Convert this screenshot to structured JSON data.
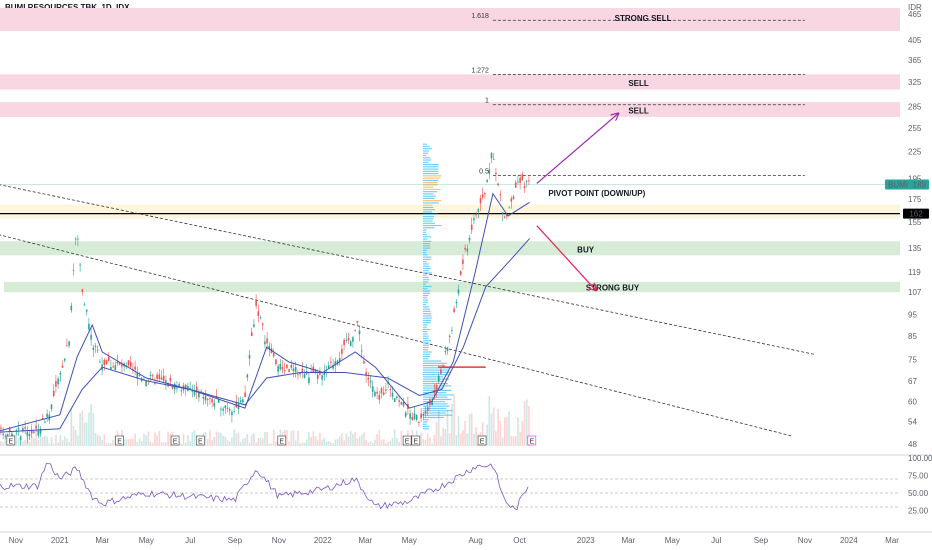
{
  "header": {
    "title": "BUMI RESOURCES TBK, 1D, IDX"
  },
  "price_axis": {
    "currency": "IDR",
    "ticks": [
      "465",
      "405",
      "365",
      "325",
      "285",
      "255",
      "225",
      "195",
      "175",
      "155",
      "135",
      "119",
      "107",
      "95",
      "85",
      "75",
      "67",
      "60",
      "54",
      "48"
    ]
  },
  "rsi_axis": {
    "ticks": [
      "100.00",
      "75.00",
      "50.00",
      "25.00"
    ]
  },
  "time_axis": {
    "labels": [
      "Nov",
      "2021",
      "Mar",
      "May",
      "Jul",
      "Sep",
      "Nov",
      "2022",
      "Mar",
      "May",
      "Aug",
      "Oct",
      "2023",
      "Mar",
      "May",
      "Jul",
      "Sep",
      "Nov",
      "2024",
      "Mar"
    ]
  },
  "badges": {
    "last_price_name": "BUMI",
    "last_price": "189",
    "pivot_price": "162"
  },
  "zones": {
    "strong_sell": "STRONG SELL",
    "sell_1": "SELL",
    "sell_2": "SELL",
    "pivot": "PIVOT POINT (DOWN/UP)",
    "buy": "BUY",
    "strong_buy": "STRONG BUY"
  },
  "fib_levels": [
    "1.618",
    "1.272",
    "1",
    "0.5"
  ],
  "earnings_marker": "E",
  "colors": {
    "sell_zone": "#f8d7e2",
    "buy_zone": "#d7ecd7",
    "pivot_zone": "#fdf6dc",
    "up_candle": "#26a69a",
    "down_candle": "#ef5350",
    "ma": "#3f51b5",
    "rsi": "#7e57c2",
    "arrow_up": "#9c27b0",
    "arrow_down": "#e91e63",
    "volume_profile": "#4fc3f7",
    "last_price_badge": "#26a69a"
  },
  "chart_data": {
    "type": "candlestick",
    "title": "BUMI RESOURCES TBK, 1D, IDX",
    "x_range": [
      "2020-10",
      "2024-03"
    ],
    "price_axis_scale": "log",
    "price_range": [
      46,
      480
    ],
    "price_path": [
      [
        "2020-10-01",
        51
      ],
      [
        "2020-11-01",
        51
      ],
      [
        "2020-12-01",
        51
      ],
      [
        "2020-12-20",
        58
      ],
      [
        "2021-01-01",
        68
      ],
      [
        "2021-01-15",
        85
      ],
      [
        "2021-01-25",
        150
      ],
      [
        "2021-02-01",
        110
      ],
      [
        "2021-02-15",
        82
      ],
      [
        "2021-03-01",
        74
      ],
      [
        "2021-04-01",
        72
      ],
      [
        "2021-05-01",
        68
      ],
      [
        "2021-06-01",
        66
      ],
      [
        "2021-07-01",
        64
      ],
      [
        "2021-08-01",
        60
      ],
      [
        "2021-09-01",
        58
      ],
      [
        "2021-09-15",
        60
      ],
      [
        "2021-10-01",
        100
      ],
      [
        "2021-10-15",
        82
      ],
      [
        "2021-11-01",
        72
      ],
      [
        "2021-12-01",
        70
      ],
      [
        "2022-01-01",
        68
      ],
      [
        "2022-02-01",
        80
      ],
      [
        "2022-02-20",
        90
      ],
      [
        "2022-03-01",
        70
      ],
      [
        "2022-03-20",
        60
      ],
      [
        "2022-04-01",
        66
      ],
      [
        "2022-05-01",
        56
      ],
      [
        "2022-05-15",
        55
      ],
      [
        "2022-06-01",
        60
      ],
      [
        "2022-06-15",
        70
      ],
      [
        "2022-07-01",
        90
      ],
      [
        "2022-07-15",
        125
      ],
      [
        "2022-08-01",
        160
      ],
      [
        "2022-08-15",
        180
      ],
      [
        "2022-08-25",
        230
      ],
      [
        "2022-09-01",
        190
      ],
      [
        "2022-09-10",
        155
      ],
      [
        "2022-09-20",
        175
      ],
      [
        "2022-10-01",
        190
      ],
      [
        "2022-10-15",
        189
      ]
    ],
    "moving_average_fast": [
      [
        "2020-10-01",
        51
      ],
      [
        "2021-01-01",
        56
      ],
      [
        "2021-01-25",
        76
      ],
      [
        "2021-02-15",
        90
      ],
      [
        "2021-03-01",
        78
      ],
      [
        "2021-05-01",
        68
      ],
      [
        "2021-07-01",
        64
      ],
      [
        "2021-09-15",
        58
      ],
      [
        "2021-10-15",
        80
      ],
      [
        "2021-11-15",
        74
      ],
      [
        "2022-01-01",
        70
      ],
      [
        "2022-02-15",
        78
      ],
      [
        "2022-03-15",
        72
      ],
      [
        "2022-05-01",
        58
      ],
      [
        "2022-06-01",
        60
      ],
      [
        "2022-07-01",
        74
      ],
      [
        "2022-08-01",
        120
      ],
      [
        "2022-08-25",
        180
      ],
      [
        "2022-09-15",
        160
      ],
      [
        "2022-10-15",
        172
      ]
    ],
    "moving_average_slow": [
      [
        "2020-10-01",
        51
      ],
      [
        "2021-01-01",
        52
      ],
      [
        "2021-02-01",
        64
      ],
      [
        "2021-03-01",
        72
      ],
      [
        "2021-05-01",
        67
      ],
      [
        "2021-07-01",
        64
      ],
      [
        "2021-09-15",
        59
      ],
      [
        "2021-10-15",
        68
      ],
      [
        "2021-12-01",
        70
      ],
      [
        "2022-02-01",
        70
      ],
      [
        "2022-04-01",
        68
      ],
      [
        "2022-05-15",
        62
      ],
      [
        "2022-06-15",
        64
      ],
      [
        "2022-07-15",
        80
      ],
      [
        "2022-08-15",
        110
      ],
      [
        "2022-09-15",
        125
      ],
      [
        "2022-10-15",
        142
      ]
    ],
    "rsi": {
      "range": [
        0,
        100
      ],
      "levels": [
        70,
        50,
        30
      ],
      "path": [
        [
          "2020-10-01",
          60
        ],
        [
          "2020-12-01",
          60
        ],
        [
          "2020-12-15",
          95
        ],
        [
          "2021-01-01",
          70
        ],
        [
          "2021-01-25",
          85
        ],
        [
          "2021-02-15",
          45
        ],
        [
          "2021-03-01",
          35
        ],
        [
          "2021-05-01",
          50
        ],
        [
          "2021-07-01",
          45
        ],
        [
          "2021-09-01",
          40
        ],
        [
          "2021-10-01",
          85
        ],
        [
          "2021-11-01",
          45
        ],
        [
          "2022-01-01",
          55
        ],
        [
          "2022-02-15",
          70
        ],
        [
          "2022-03-15",
          30
        ],
        [
          "2022-05-01",
          38
        ],
        [
          "2022-06-15",
          60
        ],
        [
          "2022-08-01",
          88
        ],
        [
          "2022-08-25",
          90
        ],
        [
          "2022-09-10",
          40
        ],
        [
          "2022-09-25",
          25
        ],
        [
          "2022-10-15",
          65
        ]
      ]
    },
    "levels": [
      {
        "label": "STRONG SELL",
        "fib": "1.618",
        "zone": [
          425,
          480
        ]
      },
      {
        "label": "SELL",
        "fib": "1.272",
        "zone": [
          312,
          338
        ]
      },
      {
        "label": "SELL",
        "fib": "1",
        "zone": [
          270,
          292
        ]
      },
      {
        "label": "",
        "fib": "0.5",
        "price": 198
      },
      {
        "label": "PIVOT POINT (DOWN/UP)",
        "price": 162,
        "zone": [
          158,
          170
        ]
      },
      {
        "label": "BUY",
        "zone": [
          130,
          140
        ]
      },
      {
        "label": "STRONG BUY",
        "zone": [
          107,
          113
        ]
      }
    ],
    "trendlines": [
      {
        "from": [
          "2020-10-01",
          190
        ],
        "to": [
          "2023-11-15",
          77
        ]
      },
      {
        "from": [
          "2020-10-01",
          146
        ],
        "to": [
          "2023-10-15",
          50
        ]
      }
    ],
    "projection_arrows": [
      {
        "direction": "up",
        "from": [
          "2022-10-25",
          190
        ],
        "to": [
          "2023-02-15",
          275
        ]
      },
      {
        "direction": "down",
        "from": [
          "2022-10-25",
          152
        ],
        "to": [
          "2023-01-15",
          108
        ]
      }
    ]
  }
}
